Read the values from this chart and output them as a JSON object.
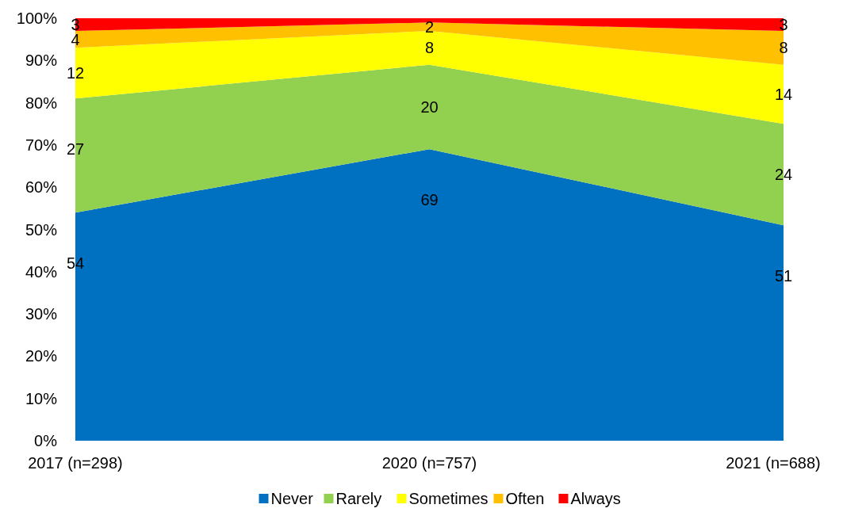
{
  "chart_data": {
    "type": "area",
    "stacked": true,
    "categories": [
      "2017 (n=298)",
      "2020 (n=757)",
      "2021 (n=688)"
    ],
    "ylim": [
      0,
      100
    ],
    "yticks": [
      {
        "value": 0,
        "label": "0%"
      },
      {
        "value": 10,
        "label": "10%"
      },
      {
        "value": 20,
        "label": "20%"
      },
      {
        "value": 30,
        "label": "30%"
      },
      {
        "value": 40,
        "label": "40%"
      },
      {
        "value": 50,
        "label": "50%"
      },
      {
        "value": 60,
        "label": "60%"
      },
      {
        "value": 70,
        "label": "70%"
      },
      {
        "value": 80,
        "label": "80%"
      },
      {
        "value": 90,
        "label": "90%"
      },
      {
        "value": 100,
        "label": "100%"
      }
    ],
    "series": [
      {
        "name": "Never",
        "color": "#0070c0",
        "values": [
          54,
          69,
          51
        ],
        "value_labels": [
          "54",
          "69",
          "51"
        ]
      },
      {
        "name": "Rarely",
        "color": "#92d050",
        "values": [
          27,
          20,
          24
        ],
        "value_labels": [
          "27",
          "20",
          "24"
        ]
      },
      {
        "name": "Sometimes",
        "color": "#ffff00",
        "values": [
          12,
          8,
          14
        ],
        "value_labels": [
          "12",
          "8",
          "14"
        ]
      },
      {
        "name": "Often",
        "color": "#ffc000",
        "values": [
          4,
          2,
          8
        ],
        "value_labels": [
          "4",
          "2",
          "8"
        ]
      },
      {
        "name": "Always",
        "color": "#ff0000",
        "values": [
          3,
          1,
          3
        ],
        "value_labels": [
          "3",
          null,
          "3"
        ]
      }
    ],
    "legend": "bottom",
    "grid": false
  }
}
